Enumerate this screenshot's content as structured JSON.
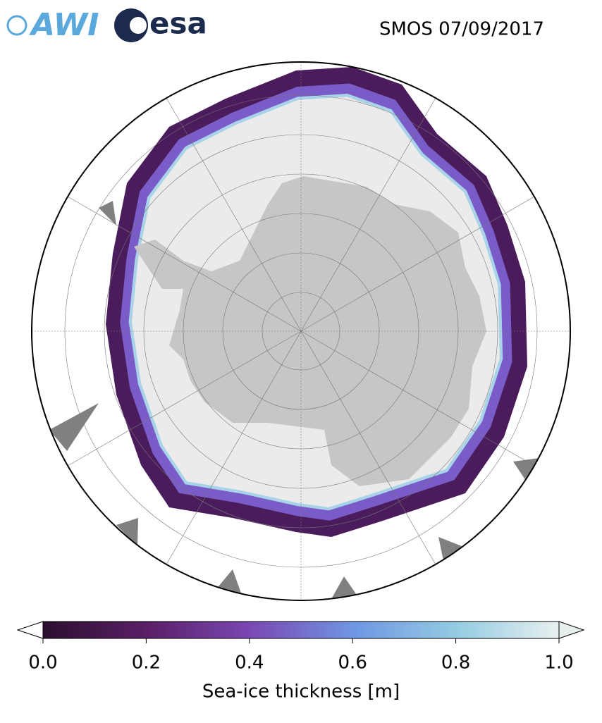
{
  "header": {
    "logos": [
      "AWI",
      "esa"
    ],
    "title": "SMOS 07/09/2017"
  },
  "colorbar": {
    "label": "Sea-ice thickness [m]",
    "lim": [
      0,
      1
    ],
    "ticks": [
      {
        "value": 0,
        "label": "0.0"
      },
      0.2,
      0.4,
      0.6,
      0.8,
      {
        "value": 1,
        "label": "1.0"
      }
    ],
    "colors": [
      "#2b0f2f",
      "#5a1f66",
      "#7a47b3",
      "#6f95e3",
      "#94cbe2",
      "#e8f0ef"
    ]
  }
}
